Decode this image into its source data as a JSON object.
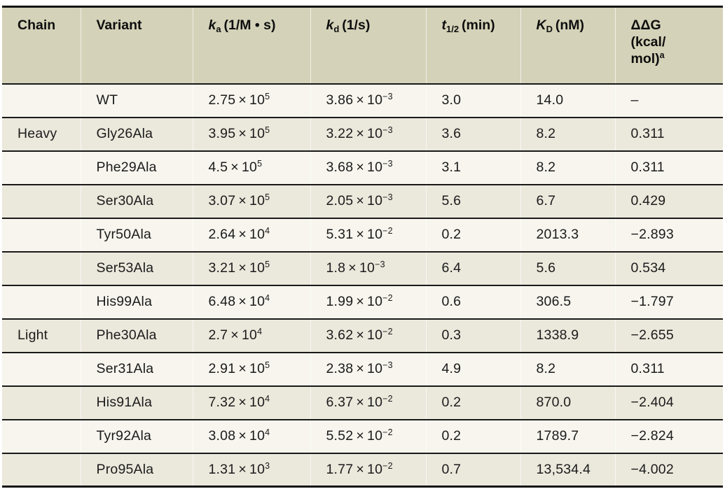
{
  "colors": {
    "header_bg": "#d4d2b8",
    "row_light": "#f7f5ee",
    "row_dark": "#ebe8dc",
    "rule_black": "#121212",
    "text": "#1b1b1b"
  },
  "notation": {
    "sci_times": " × 10"
  },
  "table": {
    "header": {
      "chain": "Chain",
      "variant": "Variant",
      "ka": {
        "sym": "k",
        "sub": "a",
        "rest": " (1/M • s)"
      },
      "kd": {
        "sym": "k",
        "sub": "d",
        "rest": " (1/s)"
      },
      "t12": {
        "sym": "t",
        "sub": "1/2",
        "rest": " (min)"
      },
      "kD": {
        "sym": "K",
        "sub": "D",
        "rest": " (nM)"
      },
      "ddg": {
        "line1": "ΔΔG",
        "line2": "(kcal/",
        "line3": "mol)",
        "sup": "a"
      }
    },
    "rows": [
      {
        "chain": "",
        "variant": "WT",
        "ka_m": "2.75",
        "ka_e": "5",
        "kd_m": "3.86",
        "kd_e": "−3",
        "t12": "3.0",
        "kd_nm": "14.0",
        "ddg": "–"
      },
      {
        "chain": "Heavy",
        "variant": "Gly26Ala",
        "ka_m": "3.95",
        "ka_e": "5",
        "kd_m": "3.22",
        "kd_e": "−3",
        "t12": "3.6",
        "kd_nm": "8.2",
        "ddg": "0.311"
      },
      {
        "chain": "",
        "variant": "Phe29Ala",
        "ka_m": "4.5",
        "ka_e": "5",
        "kd_m": "3.68",
        "kd_e": "−3",
        "t12": "3.1",
        "kd_nm": "8.2",
        "ddg": "0.311"
      },
      {
        "chain": "",
        "variant": "Ser30Ala",
        "ka_m": "3.07",
        "ka_e": "5",
        "kd_m": "2.05",
        "kd_e": "−3",
        "t12": "5.6",
        "kd_nm": "6.7",
        "ddg": "0.429"
      },
      {
        "chain": "",
        "variant": "Tyr50Ala",
        "ka_m": "2.64",
        "ka_e": "4",
        "kd_m": "5.31",
        "kd_e": "−2",
        "t12": "0.2",
        "kd_nm": "2013.3",
        "ddg": "−2.893"
      },
      {
        "chain": "",
        "variant": "Ser53Ala",
        "ka_m": "3.21",
        "ka_e": "5",
        "kd_m": "1.8",
        "kd_e": "−3",
        "t12": "6.4",
        "kd_nm": "5.6",
        "ddg": "0.534"
      },
      {
        "chain": "",
        "variant": "His99Ala",
        "ka_m": "6.48",
        "ka_e": "4",
        "kd_m": "1.99",
        "kd_e": "−2",
        "t12": "0.6",
        "kd_nm": "306.5",
        "ddg": "−1.797"
      },
      {
        "chain": "Light",
        "variant": "Phe30Ala",
        "ka_m": "2.7",
        "ka_e": "4",
        "kd_m": "3.62",
        "kd_e": "−2",
        "t12": "0.3",
        "kd_nm": "1338.9",
        "ddg": "−2.655"
      },
      {
        "chain": "",
        "variant": "Ser31Ala",
        "ka_m": "2.91",
        "ka_e": "5",
        "kd_m": "2.38",
        "kd_e": "−3",
        "t12": "4.9",
        "kd_nm": "8.2",
        "ddg": "0.311"
      },
      {
        "chain": "",
        "variant": "His91Ala",
        "ka_m": "7.32",
        "ka_e": "4",
        "kd_m": "6.37",
        "kd_e": "−2",
        "t12": "0.2",
        "kd_nm": "870.0",
        "ddg": "−2.404"
      },
      {
        "chain": "",
        "variant": "Tyr92Ala",
        "ka_m": "3.08",
        "ka_e": "4",
        "kd_m": "5.52",
        "kd_e": "−2",
        "t12": "0.2",
        "kd_nm": "1789.7",
        "ddg": "−2.824"
      },
      {
        "chain": "",
        "variant": "Pro95Ala",
        "ka_m": "1.31",
        "ka_e": "3",
        "kd_m": "1.77",
        "kd_e": "−2",
        "t12": "0.7",
        "kd_nm": "13,534.4",
        "ddg": "−4.002"
      }
    ]
  }
}
